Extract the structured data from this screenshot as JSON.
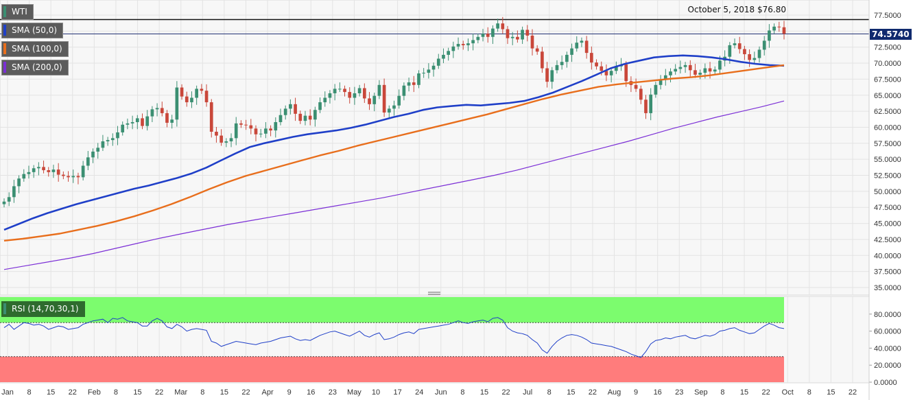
{
  "header": {
    "symbol": "WTI",
    "date_price": "October 5, 2018 $76.80",
    "last_price": "74.5740"
  },
  "indicators": {
    "sma50": {
      "label": "SMA (50,0)",
      "color": "#1f3fc8"
    },
    "sma100": {
      "label": "SMA (100,0)",
      "color": "#e86e1c"
    },
    "sma200": {
      "label": "SMA (200,0)",
      "color": "#7b2ed6"
    },
    "rsi": {
      "label": "RSI (14,70,30,1)",
      "color": "#1f3fc8",
      "overbought": 70,
      "oversold": 30
    }
  },
  "colors": {
    "up": "#3b8f72",
    "down": "#c9473a",
    "overbought_zone": "#7cfc6e",
    "oversold_zone": "#ff7c7c",
    "resistance_line": "#111111",
    "price_line": "#1a2a6e"
  },
  "chart_data": [
    {
      "type": "line",
      "title": "WTI",
      "candlestick": true,
      "ylim": [
        35.0,
        77.5
      ],
      "y_ticks": [
        "77.5000",
        "75.0000",
        "72.5000",
        "70.0000",
        "67.5000",
        "65.0000",
        "62.5000",
        "60.0000",
        "57.5000",
        "55.0000",
        "52.5000",
        "50.0000",
        "47.5000",
        "45.0000",
        "42.5000",
        "40.0000",
        "37.5000",
        "35.0000"
      ],
      "x_ticks": [
        "Jan",
        "8",
        "15",
        "22",
        "Feb",
        "8",
        "15",
        "22",
        "Mar",
        "8",
        "15",
        "22",
        "Apr",
        "9",
        "16",
        "23",
        "May",
        "10",
        "17",
        "24",
        "Jun",
        "8",
        "15",
        "22",
        "Jul",
        "8",
        "15",
        "22",
        "Aug",
        "9",
        "16",
        "23",
        "Sep",
        "8",
        "15",
        "22",
        "Oct",
        "8",
        "15",
        "22"
      ],
      "horizontal_lines": [
        76.8,
        74.574
      ],
      "series": [
        {
          "name": "WTI",
          "values": [
            48.4,
            49.1,
            50.8,
            52.0,
            52.7,
            53.0,
            53.6,
            53.8,
            53.3,
            53.0,
            53.4,
            52.6,
            52.4,
            52.2,
            52.4,
            52.2,
            54.0,
            55.3,
            56.2,
            56.8,
            57.8,
            58.0,
            58.3,
            59.2,
            60.4,
            60.6,
            60.8,
            61.4,
            60.2,
            61.7,
            62.8,
            63.0,
            62.2,
            60.7,
            61.2,
            66.2,
            64.8,
            63.9,
            64.6,
            66.0,
            65.7,
            63.9,
            59.3,
            58.7,
            57.6,
            57.8,
            58.3,
            60.6,
            60.4,
            60.3,
            59.8,
            58.9,
            59.0,
            59.8,
            59.5,
            60.8,
            61.9,
            62.9,
            63.6,
            62.1,
            61.0,
            61.8,
            61.2,
            62.7,
            63.9,
            64.6,
            65.3,
            66.0,
            66.0,
            65.5,
            64.6,
            65.3,
            66.1,
            64.5,
            63.6,
            64.9,
            66.6,
            62.3,
            62.9,
            63.4,
            64.9,
            66.5,
            67.0,
            66.6,
            68.4,
            68.5,
            69.0,
            69.6,
            70.7,
            71.3,
            71.9,
            72.6,
            73.0,
            72.8,
            73.1,
            73.6,
            74.1,
            74.6,
            74.1,
            75.4,
            76.2,
            75.3,
            73.9,
            74.1,
            73.7,
            75.2,
            74.3,
            72.3,
            71.8,
            69.2,
            67.1,
            68.9,
            69.7,
            70.2,
            71.3,
            72.3,
            73.2,
            73.5,
            71.6,
            70.1,
            69.5,
            68.8,
            68.1,
            68.8,
            69.5,
            69.8,
            67.2,
            66.6,
            66.0,
            64.3,
            62.2,
            65.1,
            66.6,
            67.4,
            68.1,
            68.7,
            69.1,
            69.4,
            69.7,
            68.9,
            68.2,
            68.5,
            69.2,
            68.7,
            69.0,
            70.4,
            71.0,
            72.8,
            73.1,
            72.2,
            71.4,
            70.5,
            70.8,
            72.1,
            73.5,
            75.1,
            75.7,
            75.6,
            74.6
          ]
        },
        {
          "name": "SMA (50,0)",
          "values": [
            44.0,
            44.9,
            45.8,
            46.6,
            47.3,
            48.0,
            48.6,
            49.2,
            49.8,
            50.4,
            50.9,
            51.5,
            52.1,
            52.8,
            53.7,
            54.8,
            55.9,
            56.9,
            57.5,
            58.0,
            58.5,
            58.9,
            59.2,
            59.5,
            59.9,
            60.4,
            61.0,
            61.6,
            62.1,
            62.7,
            63.1,
            63.3,
            63.5,
            63.4,
            63.6,
            63.8,
            64.1,
            64.7,
            65.4,
            66.3,
            67.2,
            68.2,
            69.2,
            69.9,
            70.4,
            70.9,
            71.1,
            71.2,
            71.1,
            70.9,
            70.6,
            70.2,
            69.9,
            69.7,
            69.6
          ]
        },
        {
          "name": "SMA (100,0)",
          "values": [
            42.3,
            42.6,
            43.0,
            43.4,
            44.0,
            44.6,
            45.3,
            46.1,
            47.0,
            48.0,
            49.1,
            50.3,
            51.4,
            52.4,
            53.2,
            54.0,
            54.8,
            55.6,
            56.3,
            57.1,
            57.8,
            58.5,
            59.2,
            59.9,
            60.6,
            61.3,
            62.0,
            62.8,
            63.6,
            64.4,
            65.1,
            65.7,
            66.3,
            66.7,
            67.0,
            67.3,
            67.6,
            67.8,
            68.1,
            68.5,
            68.9,
            69.3,
            69.7
          ]
        },
        {
          "name": "SMA (200,0)",
          "values": [
            37.8,
            38.4,
            39.0,
            39.6,
            40.3,
            41.1,
            41.9,
            42.7,
            43.4,
            44.1,
            44.8,
            45.4,
            46.0,
            46.6,
            47.2,
            47.8,
            48.4,
            49.0,
            49.7,
            50.4,
            51.1,
            51.8,
            52.5,
            53.3,
            54.2,
            55.1,
            56.0,
            56.9,
            57.8,
            58.8,
            59.8,
            60.7,
            61.6,
            62.4,
            63.2,
            64.1
          ]
        }
      ]
    },
    {
      "type": "line",
      "title": "RSI (14,70,30,1)",
      "ylim": [
        0,
        100
      ],
      "y_ticks": [
        "80.0000",
        "60.0000",
        "40.0000",
        "20.0000",
        "0.0000"
      ],
      "series": [
        {
          "name": "RSI (14,70,30,1)",
          "values": [
            64,
            68,
            62,
            66,
            70,
            69,
            67,
            68,
            66,
            62,
            64,
            66,
            65,
            62,
            63,
            64,
            68,
            70,
            72,
            73,
            74,
            70,
            75,
            74,
            76,
            72,
            71,
            70,
            66,
            66,
            72,
            75,
            72,
            65,
            63,
            68,
            65,
            60,
            62,
            63,
            62,
            61,
            48,
            46,
            42,
            44,
            46,
            48,
            47,
            46,
            45,
            44,
            46,
            47,
            48,
            50,
            52,
            53,
            54,
            51,
            49,
            50,
            49,
            52,
            55,
            57,
            59,
            60,
            58,
            56,
            54,
            57,
            60,
            55,
            53,
            56,
            58,
            50,
            51,
            53,
            56,
            58,
            59,
            57,
            62,
            63,
            64,
            65,
            66,
            67,
            68,
            70,
            72,
            70,
            69,
            71,
            72,
            73,
            71,
            75,
            76,
            73,
            64,
            60,
            58,
            57,
            55,
            50,
            46,
            38,
            34,
            42,
            48,
            52,
            55,
            56,
            55,
            53,
            50,
            46,
            45,
            44,
            43,
            42,
            40,
            38,
            36,
            33,
            31,
            29,
            36,
            45,
            49,
            50,
            52,
            51,
            53,
            54,
            55,
            52,
            51,
            53,
            55,
            54,
            56,
            60,
            61,
            63,
            64,
            61,
            59,
            57,
            58,
            62,
            66,
            69,
            67,
            64,
            63
          ]
        }
      ]
    }
  ]
}
